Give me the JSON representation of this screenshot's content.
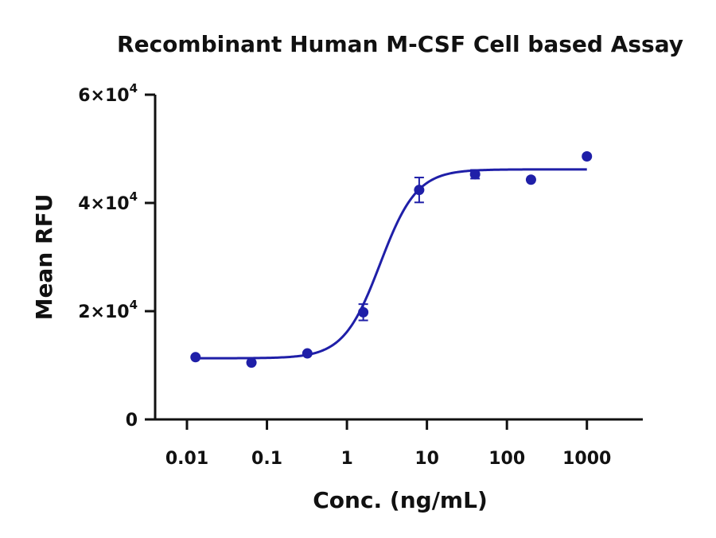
{
  "chart_data": {
    "type": "scatter",
    "title": "Recombinant Human M-CSF Cell based Assay",
    "xlabel": "Conc. (ng/mL)",
    "ylabel": "Mean RFU",
    "x_scale": "log",
    "xlim": [
      0.004,
      5000
    ],
    "ylim": [
      0,
      60000
    ],
    "x_ticks": [
      {
        "value": 0.01,
        "label": "0.01"
      },
      {
        "value": 0.1,
        "label": "0.1"
      },
      {
        "value": 1,
        "label": "1"
      },
      {
        "value": 10,
        "label": "10"
      },
      {
        "value": 100,
        "label": "100"
      },
      {
        "value": 1000,
        "label": "1000"
      }
    ],
    "y_ticks": [
      {
        "value": 0,
        "mantissa": "0",
        "exp": ""
      },
      {
        "value": 20000,
        "mantissa": "2×10",
        "exp": "4"
      },
      {
        "value": 40000,
        "mantissa": "4×10",
        "exp": "4"
      },
      {
        "value": 60000,
        "mantissa": "6×10",
        "exp": "4"
      }
    ],
    "grid": false,
    "series": [
      {
        "color": "#1f1fa8",
        "points": [
          {
            "x": 0.0128,
            "y": 11500,
            "err": 0
          },
          {
            "x": 0.064,
            "y": 10500,
            "err": 0
          },
          {
            "x": 0.32,
            "y": 12200,
            "err": 0
          },
          {
            "x": 1.6,
            "y": 19800,
            "err": 1500
          },
          {
            "x": 8,
            "y": 42400,
            "err": 2300
          },
          {
            "x": 40,
            "y": 45300,
            "err": 800
          },
          {
            "x": 200,
            "y": 44300,
            "err": 0
          },
          {
            "x": 1000,
            "y": 48600,
            "err": 0
          }
        ],
        "fit": {
          "model": "4PL",
          "bottom": 11300,
          "top": 46200,
          "ec50": 2.6,
          "hill": 1.9
        }
      }
    ]
  }
}
